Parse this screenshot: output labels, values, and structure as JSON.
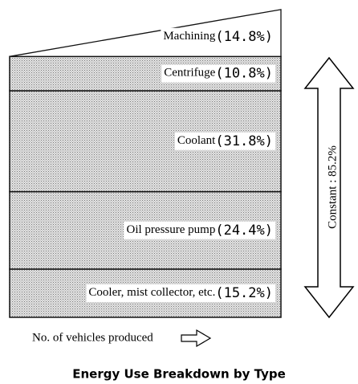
{
  "chart_data": {
    "type": "stack",
    "title": "Energy Use Breakdown by Type",
    "x_label": "No. of vehicles produced",
    "annotation": "Constant : 85.2%",
    "series": [
      {
        "name": "Machining",
        "values": [
          14.8
        ],
        "value_labels": [
          "(14.8%)"
        ]
      },
      {
        "name": "Centrifuge",
        "values": [
          10.8
        ],
        "value_labels": [
          "(10.8%)"
        ]
      },
      {
        "name": "Coolant",
        "values": [
          31.8
        ],
        "value_labels": [
          "(31.8%)"
        ]
      },
      {
        "name": "Oil pressure pump",
        "values": [
          24.4
        ],
        "value_labels": [
          "(24.4%)"
        ]
      },
      {
        "name": "Cooler, mist collector, etc.",
        "values": [
          15.2
        ],
        "value_labels": [
          "(15.2%)"
        ]
      }
    ]
  }
}
